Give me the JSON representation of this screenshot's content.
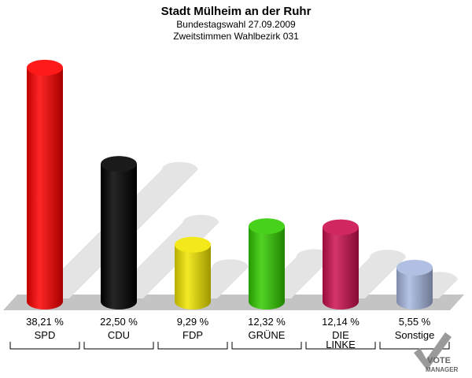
{
  "chart_data": {
    "type": "bar",
    "title": "Stadt Mülheim an der Ruhr",
    "subtitle": "Bundestagswahl 27.09.2009",
    "subtitle2": "Zweitstimmen Wahlbezirk 031",
    "categories": [
      "SPD",
      "CDU",
      "FDP",
      "GRÜNE",
      "DIE LINKE",
      "Sonstige"
    ],
    "category_lines": [
      [
        "SPD"
      ],
      [
        "CDU"
      ],
      [
        "FDP"
      ],
      [
        "GRÜNE"
      ],
      [
        "DIE",
        "LINKE"
      ],
      [
        "Sonstige"
      ]
    ],
    "values": [
      38.21,
      22.5,
      9.29,
      12.32,
      12.14,
      5.55
    ],
    "value_labels": [
      "38,21 %",
      "22,50 %",
      "9,29 %",
      "12,32 %",
      "12,14 %",
      "5,55 %"
    ],
    "colors": [
      "#ff0000",
      "#000000",
      "#f2e600",
      "#33cc00",
      "#cc1050",
      "#a8b8e0"
    ],
    "ylim": [
      0,
      40
    ],
    "grid": false,
    "legend": "none"
  },
  "logo": {
    "line1": "VOTE",
    "line2": "MANAGER"
  }
}
